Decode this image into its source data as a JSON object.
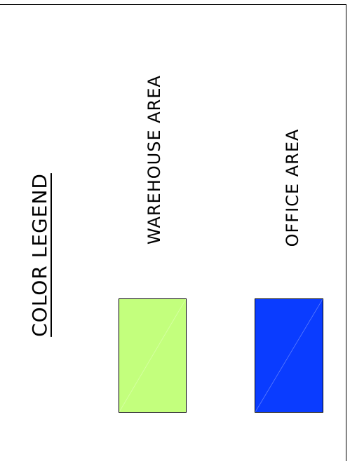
{
  "legend": {
    "title": "COLOR LEGEND",
    "items": [
      {
        "label": "WAREHOUSE AREA",
        "color": "#c3ff7d"
      },
      {
        "label": "OFFICE AREA",
        "color": "#0a3cff"
      }
    ]
  }
}
